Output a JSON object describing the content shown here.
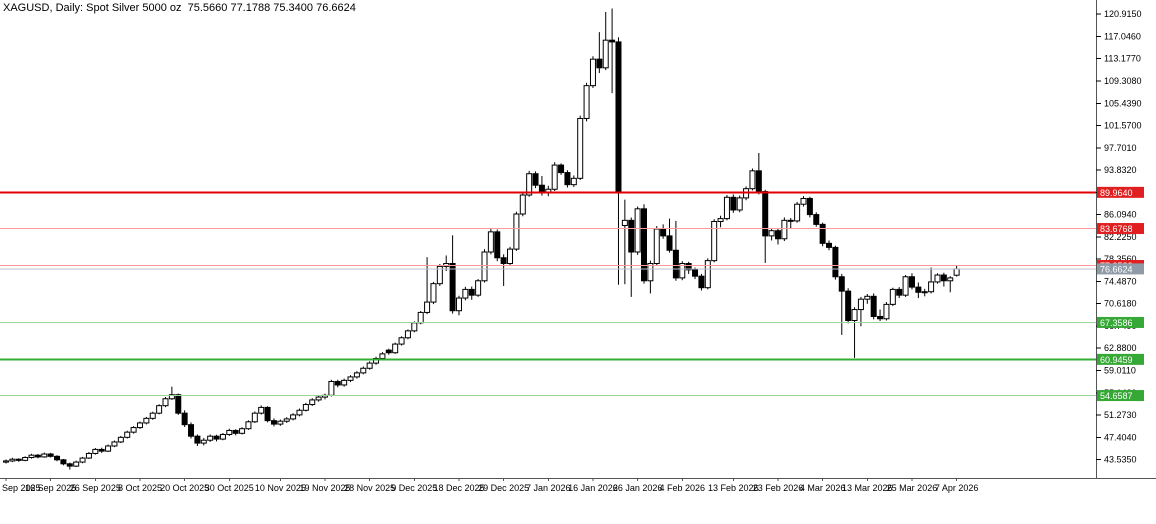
{
  "title": "XAGUSD, Daily: Spot Silver 5000 oz  75.5660 77.1788 75.3400 76.6624",
  "symbol": "XAGUSD",
  "period": "Daily",
  "description": "Spot Silver 5000 oz",
  "quote": {
    "open": "75.5660",
    "high": "77.1788",
    "low": "75.3400",
    "close": "76.6624"
  },
  "colors": {
    "background": "#ffffff",
    "bull_body": "#ffffff",
    "bear_body": "#000000",
    "outline": "#000000",
    "axis": "#555555",
    "text": "#000000",
    "resistance_bold": "#e00000",
    "resistance_light": "#ff9a9a",
    "support_light": "#9bd49b",
    "support_bold": "#33ad33",
    "current_price_line": "#b9c0c9",
    "current_price_badge": "#8e9aa6",
    "red_badge": "#e02020",
    "green_badge": "#35a835"
  },
  "chart_data": {
    "type": "candlestick",
    "title": "XAGUSD Daily — Spot Silver 5000 oz",
    "ylim": [
      40.0,
      123.4
    ],
    "grid": false,
    "y_axis_ticks": [
      "120.9150",
      "117.0460",
      "113.1770",
      "109.3080",
      "105.4390",
      "101.5700",
      "97.7010",
      "93.8320",
      "89.9630",
      "86.0940",
      "82.2250",
      "78.3560",
      "74.4870",
      "70.6180",
      "66.7490",
      "62.8800",
      "59.0110",
      "55.1420",
      "51.2730",
      "47.4040",
      "43.5350"
    ],
    "x_axis_labels": [
      "Sep 2025",
      "16 Sep 2025",
      "26 Sep 2025",
      "8 Oct 2025",
      "20 Oct 2025",
      "30 Oct 2025",
      "10 Nov 2025",
      "19 Nov 2025",
      "28 Nov 2025",
      "9 Dec 2025",
      "18 Dec 2025",
      "29 Dec 2025",
      "7 Jan 2026",
      "16 Jan 2026",
      "26 Jan 2026",
      "4 Feb 2026",
      "13 Feb 2026",
      "23 Feb 2026",
      "4 Mar 2026",
      "13 Mar 2026",
      "25 Mar 2026",
      "7 Apr 2026"
    ],
    "horizontal_lines": [
      {
        "label": "89.9640",
        "value": 89.964,
        "kind": "resistance",
        "style": "bold-red"
      },
      {
        "label": "83.6768",
        "value": 83.6768,
        "kind": "resistance",
        "style": "light-red"
      },
      {
        "label": "77.2522",
        "value": 77.2522,
        "kind": "resistance",
        "style": "light-red"
      },
      {
        "label": "76.6624",
        "value": 76.6624,
        "kind": "current-price",
        "style": "gray"
      },
      {
        "label": "67.3586",
        "value": 67.3586,
        "kind": "support",
        "style": "light-green"
      },
      {
        "label": "60.9459",
        "value": 60.9459,
        "kind": "support",
        "style": "bold-green"
      },
      {
        "label": "54.6587",
        "value": 54.6587,
        "kind": "support",
        "style": "light-green"
      }
    ],
    "candles_format": [
      "open",
      "high",
      "low",
      "close"
    ],
    "candles": [
      [
        43.1,
        43.55,
        42.85,
        43.3
      ],
      [
        43.3,
        43.85,
        43.1,
        43.6
      ],
      [
        43.6,
        43.75,
        43.15,
        43.4
      ],
      [
        43.4,
        44.1,
        43.25,
        43.9
      ],
      [
        43.9,
        44.55,
        43.7,
        44.3
      ],
      [
        44.3,
        44.5,
        43.75,
        44.0
      ],
      [
        44.0,
        44.75,
        43.85,
        44.5
      ],
      [
        44.5,
        44.7,
        43.9,
        44.1
      ],
      [
        44.1,
        44.3,
        43.25,
        43.5
      ],
      [
        43.5,
        43.65,
        42.55,
        42.8
      ],
      [
        42.8,
        43.0,
        41.8,
        42.4
      ],
      [
        42.4,
        43.35,
        42.25,
        43.1
      ],
      [
        43.1,
        44.0,
        42.9,
        43.8
      ],
      [
        43.8,
        44.85,
        43.65,
        44.6
      ],
      [
        44.6,
        45.55,
        44.4,
        45.3
      ],
      [
        45.3,
        45.6,
        44.7,
        45.0
      ],
      [
        45.0,
        46.15,
        44.85,
        45.9
      ],
      [
        45.9,
        46.85,
        45.7,
        46.6
      ],
      [
        46.6,
        47.65,
        46.4,
        47.4
      ],
      [
        47.4,
        48.55,
        47.2,
        48.3
      ],
      [
        48.3,
        49.35,
        48.05,
        49.1
      ],
      [
        49.1,
        50.15,
        48.85,
        49.9
      ],
      [
        49.9,
        50.95,
        49.65,
        50.7
      ],
      [
        50.7,
        51.85,
        50.45,
        51.6
      ],
      [
        51.6,
        53.15,
        51.4,
        52.9
      ],
      [
        52.9,
        54.4,
        52.65,
        54.1
      ],
      [
        54.1,
        56.2,
        53.9,
        54.8
      ],
      [
        54.8,
        55.0,
        51.3,
        51.6
      ],
      [
        51.6,
        52.1,
        49.2,
        49.6
      ],
      [
        49.6,
        50.0,
        47.2,
        47.6
      ],
      [
        47.6,
        47.9,
        45.9,
        46.4
      ],
      [
        46.4,
        47.3,
        46.0,
        46.9
      ],
      [
        46.9,
        47.9,
        46.6,
        47.6
      ],
      [
        47.6,
        47.85,
        46.7,
        47.1
      ],
      [
        47.1,
        48.15,
        46.9,
        47.9
      ],
      [
        47.9,
        48.9,
        47.65,
        48.6
      ],
      [
        48.6,
        48.8,
        47.75,
        48.1
      ],
      [
        48.1,
        49.15,
        47.9,
        48.9
      ],
      [
        48.9,
        50.35,
        48.7,
        50.1
      ],
      [
        50.1,
        51.9,
        49.9,
        51.6
      ],
      [
        51.6,
        52.95,
        51.35,
        52.6
      ],
      [
        52.6,
        52.8,
        50.0,
        50.3
      ],
      [
        50.3,
        50.7,
        49.3,
        49.7
      ],
      [
        49.7,
        50.5,
        49.4,
        50.2
      ],
      [
        50.2,
        50.9,
        49.9,
        50.6
      ],
      [
        50.6,
        51.6,
        50.35,
        51.3
      ],
      [
        51.3,
        52.4,
        51.05,
        52.1
      ],
      [
        52.1,
        53.4,
        51.9,
        53.1
      ],
      [
        53.1,
        54.2,
        52.85,
        53.9
      ],
      [
        53.9,
        54.7,
        53.6,
        54.4
      ],
      [
        54.4,
        55.0,
        54.0,
        54.7
      ],
      [
        54.7,
        57.4,
        54.5,
        57.1
      ],
      [
        57.1,
        57.4,
        56.1,
        56.5
      ],
      [
        56.5,
        57.6,
        56.2,
        57.3
      ],
      [
        57.3,
        58.2,
        57.0,
        57.9
      ],
      [
        57.9,
        58.9,
        57.6,
        58.6
      ],
      [
        58.6,
        59.7,
        58.35,
        59.4
      ],
      [
        59.4,
        60.6,
        59.15,
        60.3
      ],
      [
        60.3,
        61.4,
        60.0,
        61.1
      ],
      [
        61.1,
        62.2,
        60.85,
        61.9
      ],
      [
        62.55,
        62.8,
        61.75,
        62.1
      ],
      [
        62.1,
        63.85,
        61.9,
        63.6
      ],
      [
        63.6,
        64.95,
        63.35,
        64.7
      ],
      [
        64.7,
        66.15,
        64.45,
        65.9
      ],
      [
        65.9,
        67.55,
        65.65,
        67.3
      ],
      [
        67.3,
        69.35,
        67.05,
        69.1
      ],
      [
        69.1,
        78.7,
        68.8,
        70.9
      ],
      [
        70.9,
        74.4,
        70.55,
        74.1
      ],
      [
        74.1,
        77.5,
        73.7,
        77.1
      ],
      [
        77.1,
        79.0,
        76.3,
        77.6
      ],
      [
        77.6,
        82.5,
        68.9,
        69.4
      ],
      [
        69.4,
        72.0,
        68.6,
        71.6
      ],
      [
        71.6,
        73.55,
        71.2,
        73.1
      ],
      [
        73.1,
        73.6,
        71.3,
        72.1
      ],
      [
        72.1,
        74.9,
        71.8,
        74.6
      ],
      [
        74.6,
        80.1,
        74.3,
        79.6
      ],
      [
        79.6,
        83.6,
        79.2,
        83.1
      ],
      [
        83.1,
        83.5,
        78.0,
        78.6
      ],
      [
        78.6,
        79.2,
        73.7,
        77.6
      ],
      [
        77.6,
        80.5,
        77.2,
        80.1
      ],
      [
        80.1,
        86.6,
        79.8,
        86.2
      ],
      [
        86.2,
        90.0,
        85.8,
        89.5
      ],
      [
        89.5,
        93.7,
        89.2,
        93.2
      ],
      [
        93.2,
        93.6,
        90.7,
        91.2
      ],
      [
        91.2,
        92.8,
        89.4,
        89.9
      ],
      [
        89.9,
        91.1,
        89.3,
        90.5
      ],
      [
        90.5,
        95.2,
        90.2,
        94.7
      ],
      [
        94.7,
        95.0,
        93.0,
        93.4
      ],
      [
        93.4,
        93.8,
        90.8,
        91.3
      ],
      [
        91.3,
        92.9,
        90.9,
        92.4
      ],
      [
        92.4,
        103.3,
        92.1,
        102.8
      ],
      [
        102.8,
        109.0,
        102.3,
        108.5
      ],
      [
        108.5,
        113.6,
        108.1,
        113.1
      ],
      [
        113.1,
        117.8,
        110.7,
        111.6
      ],
      [
        111.6,
        121.3,
        111.2,
        116.4
      ],
      [
        116.4,
        121.9,
        107.2,
        116.1
      ],
      [
        116.1,
        116.9,
        73.9,
        89.9
      ],
      [
        84.2,
        88.7,
        74.0,
        85.1
      ],
      [
        85.1,
        85.6,
        71.8,
        79.6
      ],
      [
        79.6,
        87.5,
        79.1,
        87.1
      ],
      [
        87.1,
        87.9,
        74.1,
        74.6
      ],
      [
        74.6,
        78.1,
        72.4,
        77.6
      ],
      [
        77.6,
        84.1,
        77.2,
        83.6
      ],
      [
        83.6,
        84.4,
        81.9,
        82.4
      ],
      [
        82.4,
        85.4,
        79.5,
        79.9
      ],
      [
        79.9,
        85.0,
        74.6,
        75.1
      ],
      [
        75.1,
        78.0,
        74.7,
        77.6
      ],
      [
        77.6,
        77.9,
        75.8,
        76.5
      ],
      [
        76.5,
        76.9,
        74.9,
        75.4
      ],
      [
        75.4,
        75.8,
        72.9,
        73.4
      ],
      [
        73.4,
        78.5,
        73.1,
        78.1
      ],
      [
        78.1,
        85.3,
        77.8,
        84.9
      ],
      [
        84.9,
        85.9,
        83.9,
        85.4
      ],
      [
        85.4,
        89.5,
        85.1,
        89.1
      ],
      [
        89.1,
        89.6,
        86.4,
        86.9
      ],
      [
        86.9,
        89.4,
        86.5,
        89.0
      ],
      [
        89.0,
        91.0,
        88.6,
        90.6
      ],
      [
        90.6,
        94.1,
        90.3,
        93.7
      ],
      [
        93.7,
        96.8,
        89.6,
        90.1
      ],
      [
        90.1,
        90.4,
        77.7,
        82.4
      ],
      [
        82.4,
        83.7,
        81.6,
        83.3
      ],
      [
        83.3,
        83.6,
        80.9,
        81.9
      ],
      [
        81.9,
        85.6,
        81.5,
        85.1
      ],
      [
        85.1,
        85.5,
        83.6,
        85.0
      ],
      [
        85.0,
        88.3,
        84.7,
        87.9
      ],
      [
        87.9,
        89.3,
        87.5,
        88.9
      ],
      [
        88.9,
        89.2,
        85.6,
        86.1
      ],
      [
        86.1,
        86.5,
        84.0,
        84.4
      ],
      [
        84.4,
        84.7,
        80.6,
        81.1
      ],
      [
        81.1,
        81.6,
        79.9,
        80.4
      ],
      [
        80.4,
        80.7,
        74.8,
        75.3
      ],
      [
        75.3,
        75.8,
        65.2,
        72.8
      ],
      [
        72.8,
        73.3,
        67.2,
        67.7
      ],
      [
        67.7,
        70.0,
        61.2,
        69.6
      ],
      [
        69.6,
        71.8,
        66.7,
        71.4
      ],
      [
        71.4,
        72.3,
        70.6,
        71.9
      ],
      [
        71.9,
        72.4,
        67.9,
        68.4
      ],
      [
        68.4,
        69.6,
        67.6,
        68.0
      ],
      [
        68.0,
        70.9,
        67.7,
        70.5
      ],
      [
        70.5,
        73.4,
        70.2,
        73.1
      ],
      [
        73.1,
        73.5,
        71.6,
        72.1
      ],
      [
        72.1,
        75.6,
        71.8,
        75.3
      ],
      [
        75.3,
        75.9,
        73.1,
        73.5
      ],
      [
        73.5,
        74.3,
        71.6,
        72.6
      ],
      [
        72.6,
        73.2,
        71.9,
        72.7
      ],
      [
        72.7,
        76.9,
        72.4,
        74.4
      ],
      [
        74.4,
        75.9,
        74.1,
        75.6
      ],
      [
        75.6,
        76.0,
        73.6,
        74.6
      ],
      [
        74.6,
        75.4,
        72.6,
        75.1
      ],
      [
        75.566,
        77.1788,
        75.34,
        76.6624
      ]
    ]
  }
}
